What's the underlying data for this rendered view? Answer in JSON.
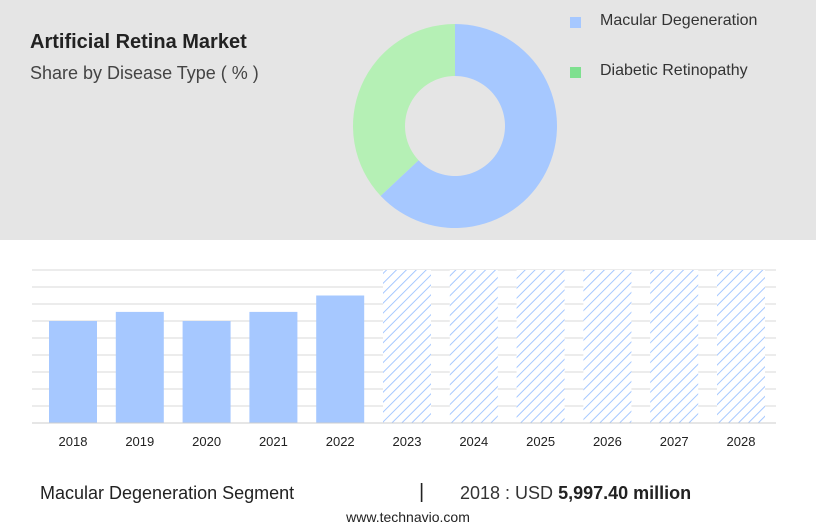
{
  "header": {
    "title": "Artificial Retina Market",
    "subtitle": "Share by Disease Type ( % )"
  },
  "colors": {
    "panel_bg": "#e5e5e5",
    "macular": "#a6c8ff",
    "diabetic": "#b5f0b5",
    "diabetic_legend": "#7ee08f",
    "forecast_hatch": "#a6c8ff"
  },
  "chart_data": [
    {
      "type": "pie",
      "donut": true,
      "title": "Share by Disease Type ( % )",
      "categories": [
        "Macular Degeneration",
        "Diabetic Retinopathy"
      ],
      "values": [
        63,
        37
      ],
      "legend_position": "top-right"
    },
    {
      "type": "bar",
      "categories": [
        "2018",
        "2019",
        "2020",
        "2021",
        "2022",
        "2023",
        "2024",
        "2025",
        "2026",
        "2027",
        "2028"
      ],
      "values": [
        5.6,
        6.1,
        5.6,
        6.1,
        7.0,
        null,
        null,
        null,
        null,
        null,
        null
      ],
      "forecast_categories": [
        "2023",
        "2024",
        "2025",
        "2026",
        "2027",
        "2028"
      ],
      "forecast_display_value": 8.4,
      "ylim": [
        0,
        8.4
      ],
      "grid": true,
      "ylabel": "",
      "xlabel": ""
    }
  ],
  "footer": {
    "segment_label": "Macular Degeneration Segment",
    "separator": "|",
    "year_label": "2018 : USD",
    "amount": "5,997.40 million"
  },
  "source": "www.technavio.com"
}
